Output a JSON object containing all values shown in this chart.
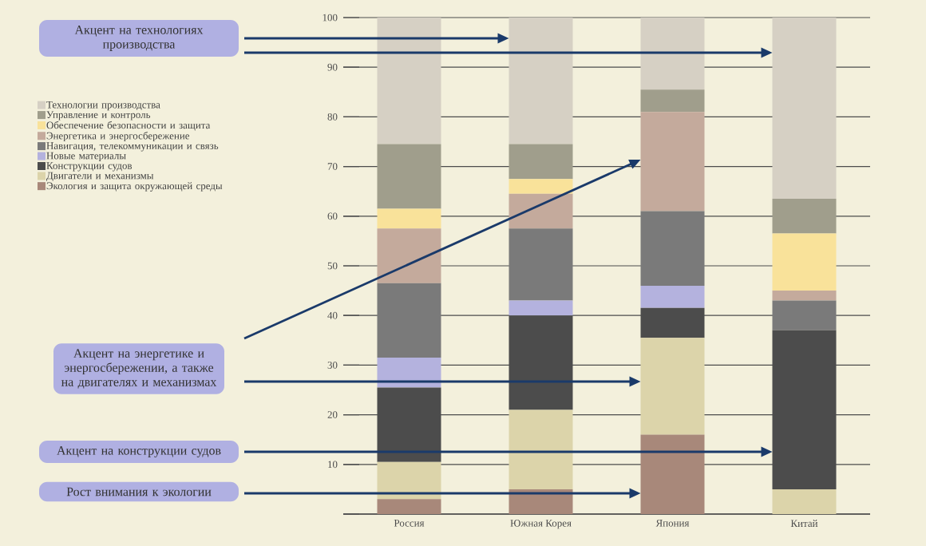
{
  "chart_data": {
    "type": "bar",
    "stacked": true,
    "categories": [
      "Россия",
      "Южная Корея",
      "Япония",
      "Китай"
    ],
    "series": [
      {
        "name": "Экология и защита окружающей среды",
        "color": "#a8887a",
        "values": [
          3,
          5,
          16,
          0
        ]
      },
      {
        "name": "Двигатели и механизмы",
        "color": "#dcd4aa",
        "values": [
          7.5,
          16,
          19.5,
          5
        ]
      },
      {
        "name": "Конструкции судов",
        "color": "#4c4c4c",
        "values": [
          15,
          19,
          6,
          32
        ]
      },
      {
        "name": "Новые материалы",
        "color": "#b4b2de",
        "values": [
          6,
          3,
          4.5,
          0
        ]
      },
      {
        "name": "Навигация, телекоммуникации и связь",
        "color": "#7a7a7a",
        "values": [
          15,
          14.5,
          15,
          6
        ]
      },
      {
        "name": "Энергетика и энергосбережение",
        "color": "#c4aa9c",
        "values": [
          11,
          7,
          20,
          2
        ]
      },
      {
        "name": "Обеспечение безопасности и защита",
        "color": "#f9e29a",
        "values": [
          4,
          3,
          0,
          11.5
        ]
      },
      {
        "name": "Управление и контроль",
        "color": "#a09e8c",
        "values": [
          13,
          7,
          4.5,
          7
        ]
      },
      {
        "name": "Технологии производства",
        "color": "#d6d0c4",
        "values": [
          25.5,
          25.5,
          14.5,
          36.5
        ]
      }
    ],
    "ylim": [
      0,
      100
    ],
    "yticks": [
      {
        "value": 0,
        "label": null
      },
      10,
      20,
      30,
      40,
      50,
      60,
      70,
      80,
      90,
      100
    ],
    "grid": "y",
    "legend": "left",
    "annotations": [
      "Акцент на технологиях производства",
      "Акцент на энергетике и энергосбережении, а также на двигателях и механизмах",
      "Акцент на конструкции судов",
      "Рост внимания к экологии"
    ]
  }
}
